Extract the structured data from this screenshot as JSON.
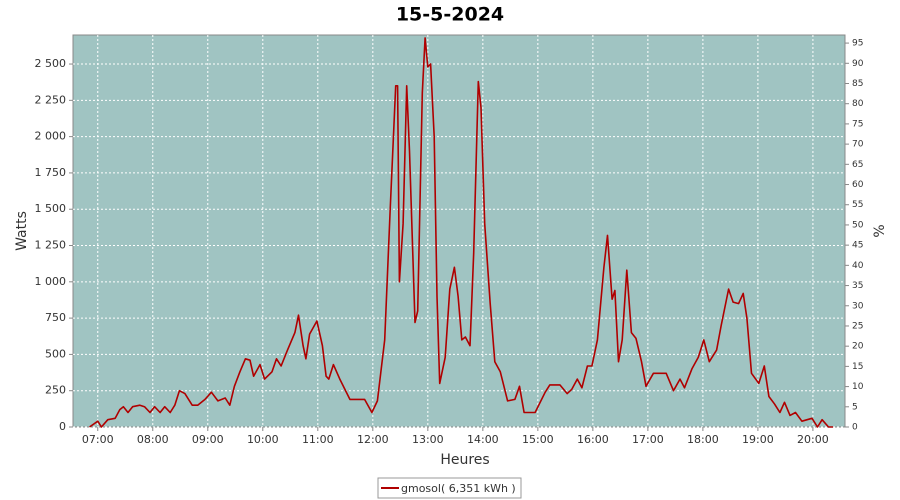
{
  "chart_data": {
    "type": "line",
    "title": "15-5-2024",
    "x_label": "Heures",
    "y_label": "Watts",
    "y2_label": "%",
    "x": [
      "06:51",
      "07:00",
      "07:04",
      "07:11",
      "07:19",
      "07:24",
      "07:28",
      "07:33",
      "07:38",
      "07:46",
      "07:51",
      "07:57",
      "08:02",
      "08:08",
      "08:13",
      "08:19",
      "08:24",
      "08:29",
      "08:35",
      "08:43",
      "08:49",
      "08:57",
      "09:04",
      "09:11",
      "09:19",
      "09:24",
      "09:29",
      "09:35",
      "09:41",
      "09:46",
      "09:50",
      "09:57",
      "10:02",
      "10:10",
      "10:15",
      "10:20",
      "10:27",
      "10:35",
      "10:39",
      "10:44",
      "10:47",
      "10:51",
      "10:59",
      "11:05",
      "11:09",
      "11:12",
      "11:17",
      "11:24",
      "11:35",
      "11:51",
      "11:59",
      "12:05",
      "12:13",
      "12:19",
      "12:25",
      "12:27",
      "12:29",
      "12:33",
      "12:37",
      "12:40",
      "12:46",
      "12:49",
      "12:54",
      "12:57",
      "13:00",
      "13:03",
      "13:07",
      "13:10",
      "13:13",
      "13:19",
      "13:24",
      "13:29",
      "13:33",
      "13:37",
      "13:41",
      "13:46",
      "13:50",
      "13:55",
      "13:58",
      "14:02",
      "14:08",
      "14:13",
      "14:19",
      "14:27",
      "14:35",
      "14:40",
      "14:45",
      "14:57",
      "15:08",
      "15:13",
      "15:24",
      "15:32",
      "15:37",
      "15:43",
      "15:48",
      "15:54",
      "15:59",
      "16:05",
      "16:12",
      "16:16",
      "16:21",
      "16:24",
      "16:28",
      "16:32",
      "16:37",
      "16:42",
      "16:47",
      "16:53",
      "16:58",
      "17:06",
      "17:20",
      "17:28",
      "17:35",
      "17:40",
      "17:48",
      "17:55",
      "18:01",
      "18:07",
      "18:15",
      "18:20",
      "18:28",
      "18:33",
      "18:39",
      "18:44",
      "18:48",
      "18:53",
      "19:01",
      "19:07",
      "19:12",
      "19:18",
      "19:24",
      "19:29",
      "19:35",
      "19:41",
      "19:48",
      "19:59",
      "20:05",
      "20:10",
      "20:17",
      "20:22"
    ],
    "series": [
      {
        "name": "gmosol( 6,351 kWh )",
        "color": "#b00000",
        "values": [
          0,
          40,
          0,
          50,
          60,
          120,
          140,
          100,
          140,
          150,
          140,
          100,
          140,
          100,
          140,
          100,
          150,
          250,
          230,
          150,
          150,
          190,
          240,
          180,
          200,
          150,
          280,
          380,
          470,
          460,
          350,
          430,
          330,
          380,
          470,
          420,
          530,
          650,
          770,
          560,
          470,
          640,
          730,
          560,
          350,
          330,
          430,
          330,
          190,
          190,
          100,
          180,
          600,
          1500,
          2350,
          2350,
          1000,
          1400,
          2350,
          1900,
          720,
          800,
          2300,
          2680,
          2480,
          2500,
          2000,
          900,
          300,
          480,
          950,
          1100,
          900,
          600,
          620,
          560,
          1200,
          2380,
          2200,
          1400,
          850,
          450,
          380,
          180,
          190,
          280,
          100,
          100,
          240,
          290,
          290,
          230,
          260,
          330,
          270,
          420,
          420,
          600,
          1100,
          1320,
          880,
          940,
          450,
          600,
          1080,
          650,
          610,
          450,
          280,
          370,
          370,
          250,
          330,
          270,
          400,
          480,
          600,
          450,
          530,
          700,
          950,
          860,
          850,
          920,
          750,
          370,
          300,
          420,
          210,
          160,
          100,
          170,
          80,
          100,
          40,
          60,
          0,
          50,
          0,
          0
        ]
      }
    ],
    "xlim": [
      "06:33",
      "20:35"
    ],
    "xticks": [
      "07:00",
      "08:00",
      "09:00",
      "10:00",
      "11:00",
      "12:00",
      "13:00",
      "14:00",
      "15:00",
      "16:00",
      "17:00",
      "18:00",
      "19:00",
      "20:00"
    ],
    "ylim": [
      0,
      2700
    ],
    "yticks": [
      0,
      250,
      500,
      750,
      {
        "value": 1000,
        "label": "1 000"
      },
      {
        "value": 1250,
        "label": "1 250"
      },
      {
        "value": 1500,
        "label": "1 500"
      },
      {
        "value": 1750,
        "label": "1 750"
      },
      {
        "value": 2000,
        "label": "2 000"
      },
      {
        "value": 2250,
        "label": "2 250"
      },
      {
        "value": 2500,
        "label": "2 500"
      }
    ],
    "y2lim": [
      0,
      97
    ],
    "y2ticks": [
      0,
      5,
      10,
      15,
      20,
      25,
      30,
      35,
      40,
      45,
      50,
      55,
      60,
      65,
      70,
      75,
      80,
      85,
      90,
      95
    ],
    "grid": true,
    "plot_background": "#a0c4c2"
  }
}
